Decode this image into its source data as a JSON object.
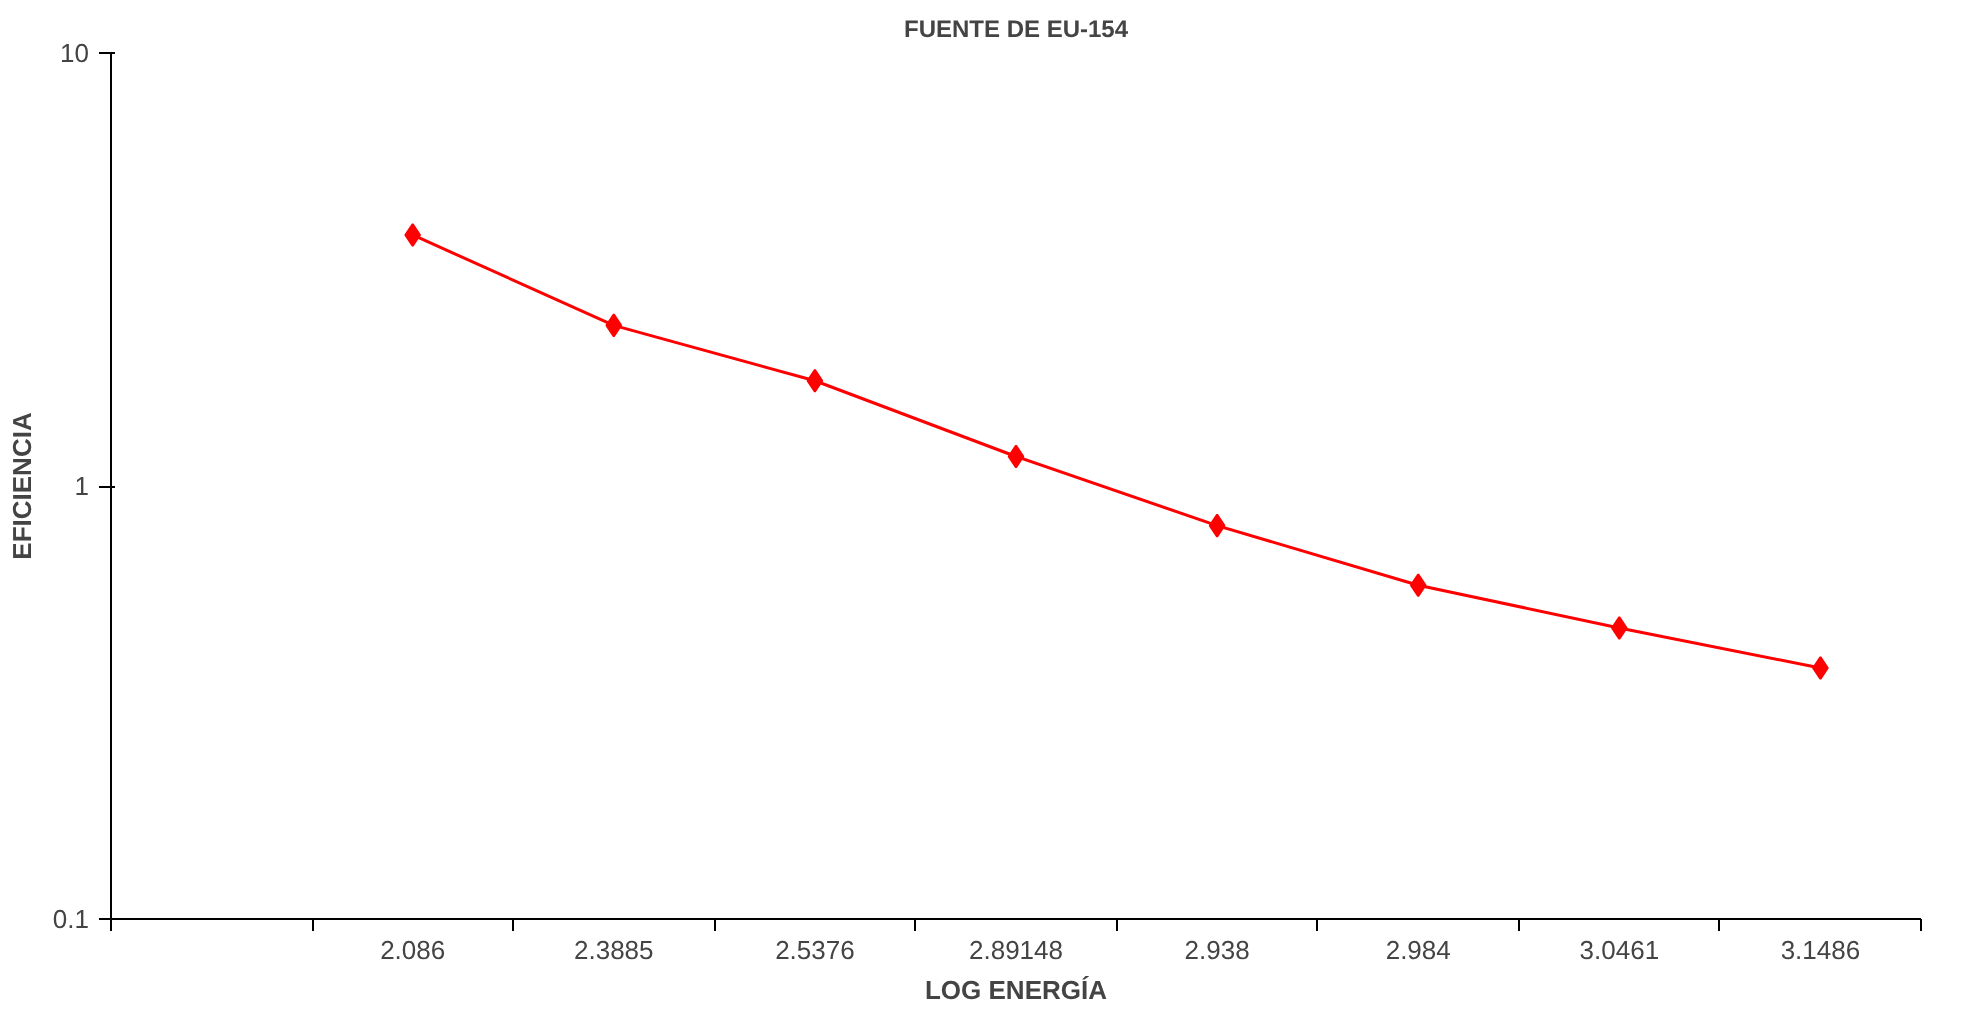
{
  "chart_data": {
    "type": "line",
    "title": "FUENTE DE EU-154",
    "xlabel": "LOG ENERGÍA",
    "ylabel": "EFICIENCIA",
    "categories": [
      null,
      "2.086",
      "2.3885",
      "2.5376",
      "2.89148",
      "2.938",
      "2.984",
      "3.0461",
      "3.1486"
    ],
    "series": [
      {
        "color": "#ff0000",
        "values": [
          null,
          3.8,
          2.35,
          1.75,
          1.17,
          0.81,
          0.59,
          0.47,
          0.38
        ]
      }
    ],
    "log": "y",
    "ylim": [
      0.1,
      10
    ],
    "yticks": [
      0.1,
      1,
      10
    ],
    "grid": false,
    "marker": "diamond",
    "line_style": "solid"
  }
}
